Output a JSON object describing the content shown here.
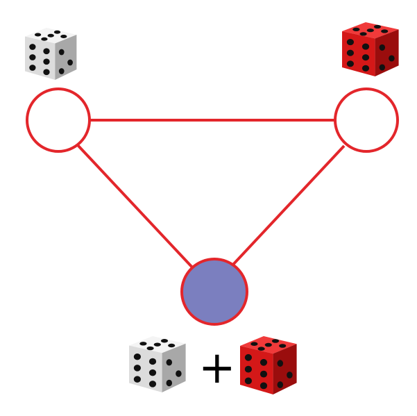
{
  "nodes": [
    {
      "id": "left",
      "fill": "#ffffff",
      "stroke": "#e3262b"
    },
    {
      "id": "right",
      "fill": "#ffffff",
      "stroke": "#e3262b"
    },
    {
      "id": "bottom",
      "fill": "#7b7fbf",
      "stroke": "#e3262b"
    }
  ],
  "edges": [
    {
      "from": "left",
      "to": "right",
      "color": "#e3262b"
    },
    {
      "from": "left",
      "to": "bottom",
      "color": "#e3262b"
    },
    {
      "from": "right",
      "to": "bottom",
      "color": "#e3262b"
    }
  ],
  "dice": {
    "white": {
      "icon": "white-die-icon",
      "face": "#eeeeee",
      "side_light": "#d6d6d6",
      "side_dark": "#a9a9a9",
      "pip": "#111111"
    },
    "red": {
      "icon": "red-die-icon",
      "face": "#e61e1e",
      "side_light": "#c61414",
      "side_dark": "#8f0b0b",
      "pip": "#111111"
    }
  },
  "sum_label": {
    "operator": "+"
  }
}
